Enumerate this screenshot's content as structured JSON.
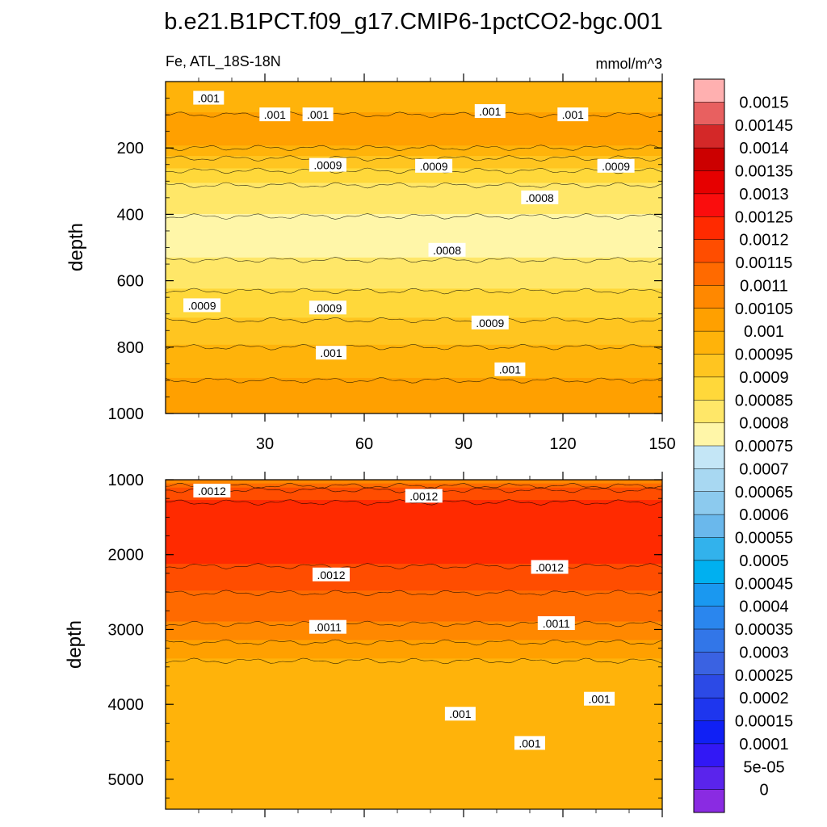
{
  "title": "b.e21.B1PCT.f09_g17.CMIP6-1pctCO2-bgc.001",
  "chart_data": [
    {
      "type": "contour",
      "panel": "upper",
      "left_label": "Fe, ATL_18S-18N",
      "right_label": "mmol/m^3",
      "ylabel": "depth",
      "xlabel": "",
      "xlim": [
        0,
        150
      ],
      "ylim": [
        0,
        1000
      ],
      "y_inverted": true,
      "x_ticks": [
        "30",
        "60",
        "90",
        "120",
        "150"
      ],
      "y_ticks": [
        "200",
        "400",
        "600",
        "800",
        "1000"
      ],
      "depth_profile": [
        {
          "depth": 20,
          "value": 0.00098
        },
        {
          "depth": 100,
          "value": 0.001
        },
        {
          "depth": 175,
          "value": 0.00103
        },
        {
          "depth": 250,
          "value": 0.00092
        },
        {
          "depth": 320,
          "value": 0.00084
        },
        {
          "depth": 460,
          "value": 0.00077
        },
        {
          "depth": 580,
          "value": 0.00082
        },
        {
          "depth": 680,
          "value": 0.00088
        },
        {
          "depth": 800,
          "value": 0.00095
        },
        {
          "depth": 900,
          "value": 0.001
        },
        {
          "depth": 1000,
          "value": 0.00105
        }
      ],
      "contour_labels": [
        {
          "text": ".001",
          "x": 13,
          "depth": 50
        },
        {
          "text": ".001",
          "x": 33,
          "depth": 100
        },
        {
          "text": ".001",
          "x": 46,
          "depth": 100
        },
        {
          "text": ".001",
          "x": 98,
          "depth": 90
        },
        {
          "text": ".001",
          "x": 123,
          "depth": 100
        },
        {
          "text": ".0009",
          "x": 49,
          "depth": 252
        },
        {
          "text": ".0009",
          "x": 81,
          "depth": 255
        },
        {
          "text": ".0009",
          "x": 136,
          "depth": 255
        },
        {
          "text": ".0008",
          "x": 113,
          "depth": 350
        },
        {
          "text": ".0008",
          "x": 85,
          "depth": 508
        },
        {
          "text": ".0009",
          "x": 11,
          "depth": 675
        },
        {
          "text": ".0009",
          "x": 49,
          "depth": 682
        },
        {
          "text": ".0009",
          "x": 98,
          "depth": 727
        },
        {
          "text": ".001",
          "x": 50,
          "depth": 818
        },
        {
          "text": ".001",
          "x": 104,
          "depth": 868
        }
      ]
    },
    {
      "type": "contour",
      "panel": "lower",
      "ylabel": "depth",
      "xlabel": "",
      "xlim": [
        0,
        150
      ],
      "ylim": [
        1000,
        5400
      ],
      "y_inverted": true,
      "y_ticks": [
        "1000",
        "2000",
        "3000",
        "4000",
        "5000"
      ],
      "depth_profile": [
        {
          "depth": 1000,
          "value": 0.00105
        },
        {
          "depth": 1150,
          "value": 0.00118
        },
        {
          "depth": 1600,
          "value": 0.00125
        },
        {
          "depth": 2000,
          "value": 0.00122
        },
        {
          "depth": 2350,
          "value": 0.00117
        },
        {
          "depth": 2900,
          "value": 0.0011
        },
        {
          "depth": 3400,
          "value": 0.001
        },
        {
          "depth": 4200,
          "value": 0.00098
        },
        {
          "depth": 5400,
          "value": 0.001
        }
      ],
      "contour_labels": [
        {
          "text": ".0012",
          "x": 14,
          "depth": 1150
        },
        {
          "text": ".0012",
          "x": 78,
          "depth": 1220
        },
        {
          "text": ".0012",
          "x": 50,
          "depth": 2270
        },
        {
          "text": ".0012",
          "x": 116,
          "depth": 2170
        },
        {
          "text": ".0011",
          "x": 49,
          "depth": 2970
        },
        {
          "text": ".0011",
          "x": 118,
          "depth": 2920
        },
        {
          "text": ".001",
          "x": 89,
          "depth": 4130
        },
        {
          "text": ".001",
          "x": 131,
          "depth": 3930
        },
        {
          "text": ".001",
          "x": 110,
          "depth": 4520
        }
      ]
    }
  ],
  "colorbar": {
    "labels": [
      "0.0015",
      "0.00145",
      "0.0014",
      "0.00135",
      "0.0013",
      "0.00125",
      "0.0012",
      "0.00115",
      "0.0011",
      "0.00105",
      "0.001",
      "0.00095",
      "0.0009",
      "0.00085",
      "0.0008",
      "0.00075",
      "0.0007",
      "0.00065",
      "0.0006",
      "0.00055",
      "0.0005",
      "0.00045",
      "0.0004",
      "0.00035",
      "0.0003",
      "0.00025",
      "0.0002",
      "0.00015",
      "0.0001",
      "5e-05",
      "0"
    ],
    "colors": [
      "#ffb0b0",
      "#e86060",
      "#d42828",
      "#cc0000",
      "#e60000",
      "#fa0d0d",
      "#ff2a00",
      "#ff4d00",
      "#ff6a00",
      "#ff8800",
      "#ffa000",
      "#ffb30a",
      "#ffc520",
      "#ffd83a",
      "#ffe768",
      "#fff6a8",
      "#c4e6f6",
      "#a8d8f2",
      "#8ccaee",
      "#6ab8ec",
      "#32b2ec",
      "#00b0f0",
      "#1a98f0",
      "#2a86ee",
      "#3276e8",
      "#3a62e2",
      "#2c4ae6",
      "#1e36ee",
      "#1020f5",
      "#3218f5",
      "#5a24ec",
      "#8a2be2"
    ]
  }
}
